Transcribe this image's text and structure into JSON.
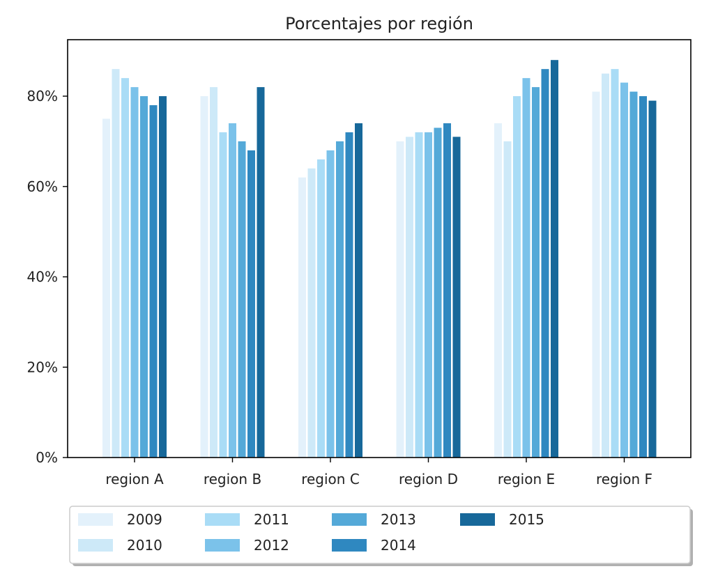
{
  "chart_data": {
    "type": "bar",
    "title": "Porcentajes por región",
    "xlabel": "",
    "ylabel": "",
    "categories": [
      "region A",
      "region B",
      "region C",
      "region D",
      "region E",
      "region F"
    ],
    "y_ticks": [
      "0%",
      "20%",
      "40%",
      "60%",
      "80%"
    ],
    "y_tick_values": [
      0,
      20,
      40,
      60,
      80
    ],
    "ylim": [
      0,
      92.5
    ],
    "grid": false,
    "legend": {
      "placement": "bottom",
      "columns": 5
    },
    "series": [
      {
        "name": "2009",
        "color": "#e3f1fb",
        "values": [
          75,
          80,
          62,
          70,
          74,
          81
        ]
      },
      {
        "name": "2010",
        "color": "#cde9f8",
        "values": [
          86,
          82,
          64,
          71,
          70,
          85
        ]
      },
      {
        "name": "2011",
        "color": "#a9dcf6",
        "values": [
          84,
          72,
          66,
          72,
          80,
          86
        ]
      },
      {
        "name": "2012",
        "color": "#7bc2ea",
        "values": [
          82,
          74,
          68,
          72,
          84,
          83
        ]
      },
      {
        "name": "2013",
        "color": "#54a9d8",
        "values": [
          80,
          70,
          70,
          73,
          82,
          81
        ]
      },
      {
        "name": "2014",
        "color": "#2f88c0",
        "values": [
          78,
          68,
          72,
          74,
          86,
          80
        ]
      },
      {
        "name": "2015",
        "color": "#17689a",
        "values": [
          80,
          82,
          74,
          71,
          88,
          79
        ]
      }
    ]
  }
}
